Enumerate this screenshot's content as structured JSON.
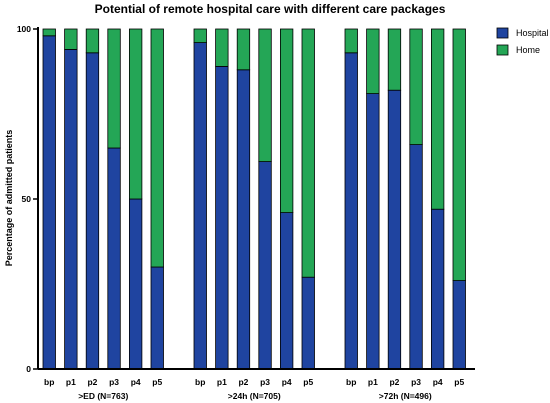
{
  "chart_data": {
    "type": "bar",
    "stacked": true,
    "title": "Potential of remote hospital care with different care packages",
    "ylabel": "Percentage of admitted patients",
    "xlabel": "",
    "ylim": [
      0,
      100
    ],
    "yticks": [
      0,
      50,
      100
    ],
    "grid": false,
    "legend_position": "top-right",
    "groups": [
      {
        "label": ">ED (N=763)",
        "categories": [
          "bp",
          "p1",
          "p2",
          "p3",
          "p4",
          "p5"
        ],
        "hospital": [
          98,
          94,
          93,
          65,
          50,
          30
        ]
      },
      {
        "label": ">24h (N=705)",
        "categories": [
          "bp",
          "p1",
          "p2",
          "p3",
          "p4",
          "p5"
        ],
        "hospital": [
          96,
          89,
          88,
          61,
          46,
          27
        ]
      },
      {
        "label": ">72h (N=496)",
        "categories": [
          "bp",
          "p1",
          "p2",
          "p3",
          "p4",
          "p5"
        ],
        "hospital": [
          93,
          81,
          82,
          66,
          47,
          26
        ]
      }
    ],
    "series": [
      {
        "name": "Hospital",
        "color": "#1f44a0"
      },
      {
        "name": "Home",
        "color": "#24a656"
      }
    ]
  }
}
